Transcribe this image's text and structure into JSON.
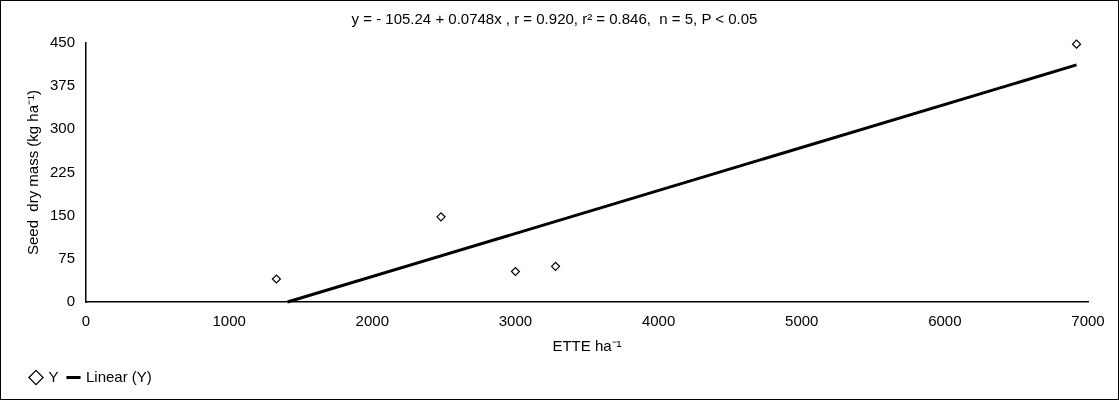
{
  "chart_data": {
    "type": "scatter",
    "title": "y = - 105.24 + 0.0748x , r = 0.920, r² = 0.846,  n = 5, P < 0.05",
    "xlabel": "ETTE ha⁻¹",
    "ylabel": "Seed  dry mass (kg ha⁻¹)",
    "xlim": [
      0,
      7000
    ],
    "xticks": [
      0,
      1000,
      2000,
      3000,
      4000,
      5000,
      6000,
      7000
    ],
    "ylim": [
      0,
      450
    ],
    "yticks": [
      0,
      75,
      150,
      225,
      300,
      375,
      450
    ],
    "grid": false,
    "legend": "bottom left",
    "series": [
      {
        "name": "Y",
        "type": "scatter",
        "marker": "diamond",
        "color": "#000000",
        "x": [
          1330,
          2480,
          3000,
          3280,
          6920
        ],
        "values": [
          40,
          148,
          53,
          62,
          448
        ]
      },
      {
        "name": "Linear (Y)",
        "type": "line",
        "marker": "none",
        "color": "#000000",
        "x": [
          1407,
          6920
        ],
        "values": [
          0,
          412
        ]
      }
    ]
  }
}
